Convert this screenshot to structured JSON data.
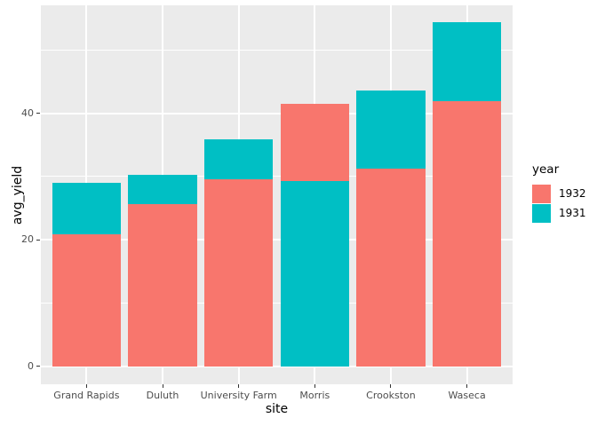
{
  "chart_data": {
    "type": "bar",
    "variant": "overlapped-bars-min-in-front",
    "title": "",
    "xlabel": "site",
    "ylabel": "avg_yield",
    "categories": [
      "Grand Rapids",
      "Duluth",
      "University Farm",
      "Morris",
      "Crookston",
      "Waseca"
    ],
    "series": [
      {
        "name": "1932",
        "color": "#F8766D",
        "values": [
          20.81,
          25.7,
          29.51,
          41.51,
          31.18,
          41.87
        ]
      },
      {
        "name": "1931",
        "color": "#00BFC4",
        "values": [
          29.05,
          30.29,
          35.83,
          29.29,
          43.66,
          54.35
        ]
      }
    ],
    "y_ticks": [
      0,
      20,
      40
    ],
    "y_minor_ticks": [
      10,
      30,
      50
    ],
    "ylim": [
      -2.85,
      57.07
    ],
    "grid": true,
    "legend": {
      "title": "year",
      "position": "right",
      "entries": [
        {
          "label": "1932",
          "color": "#F8766D"
        },
        {
          "label": "1931",
          "color": "#00BFC4"
        }
      ]
    },
    "colors": {
      "panel_background": "#EBEBEB",
      "gridline": "#FFFFFF",
      "tick_text": "#4D4D4D",
      "title_text": "#000000",
      "tick_mark": "#333333"
    }
  }
}
